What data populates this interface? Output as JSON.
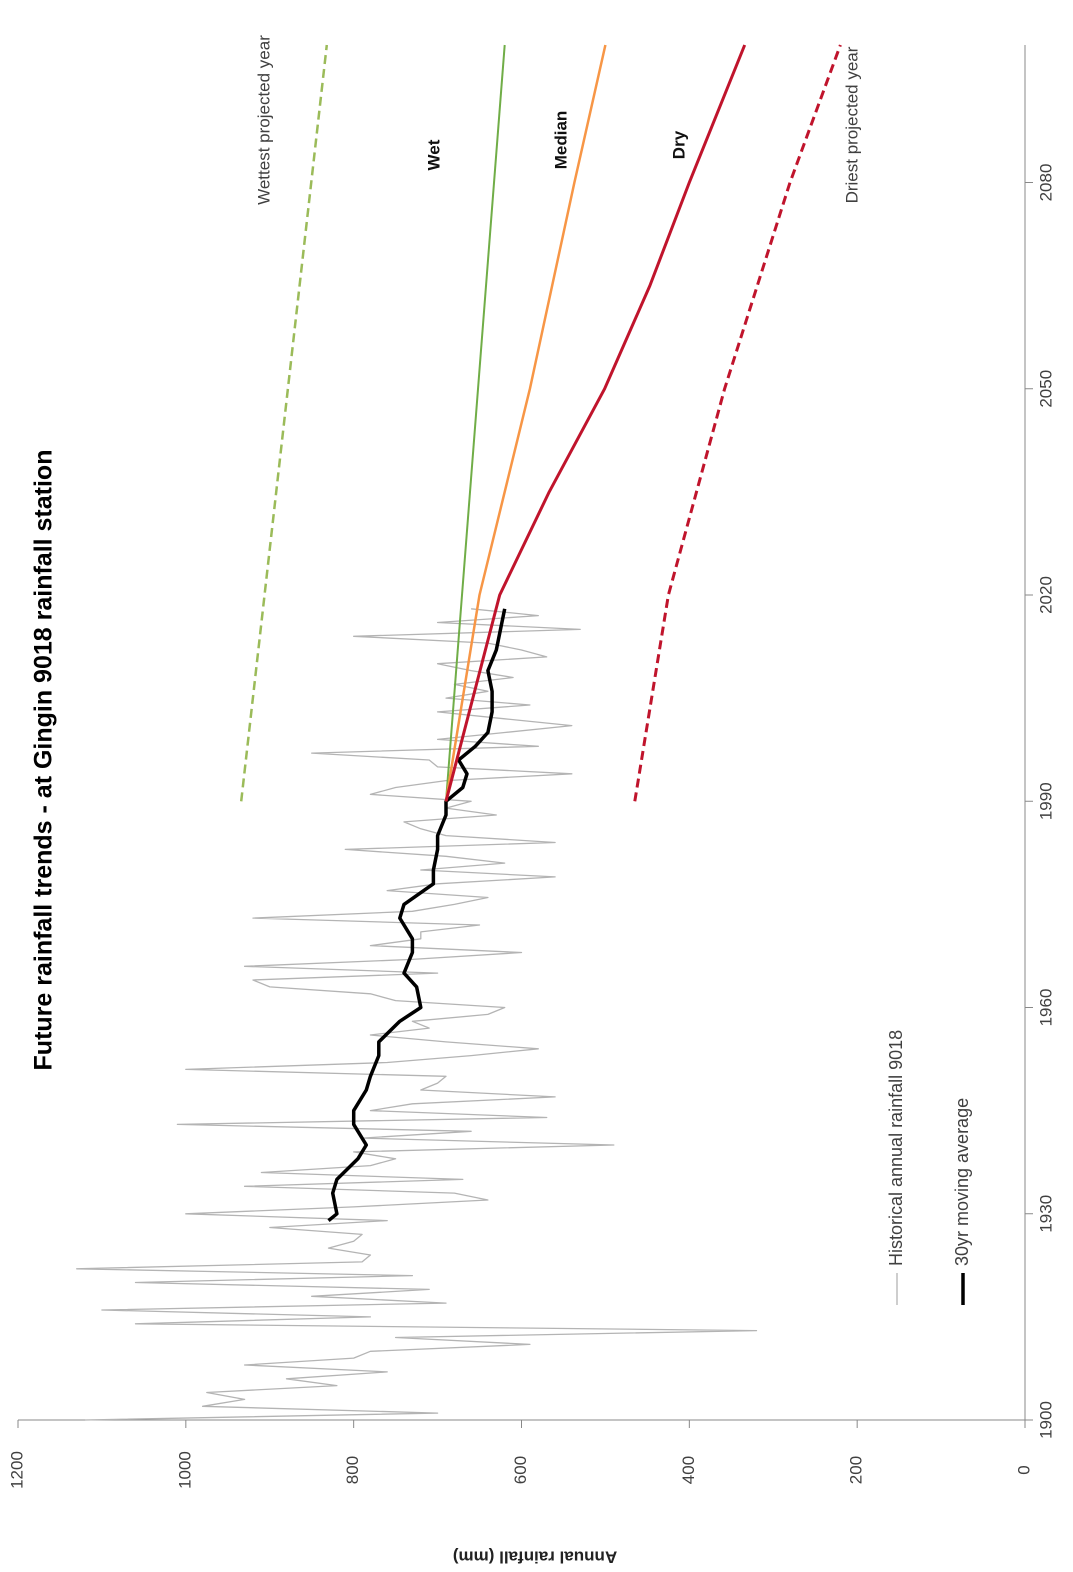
{
  "chart_data": {
    "type": "line",
    "title": "Future rainfall trends - at Gingin 9018 rainfall station",
    "y_label": "Annual rainfall (mm)",
    "xlim": [
      1900,
      2100
    ],
    "xticks": [
      1900,
      1930,
      1960,
      1990,
      2020,
      2050,
      2080
    ],
    "ylim": [
      0,
      1200
    ],
    "yticks": [
      0,
      200,
      400,
      600,
      800,
      1000,
      1200
    ],
    "series": [
      {
        "name": "Historical annual rainfall 9018",
        "color": "#b4b4b4",
        "width": 1.3,
        "legend": true,
        "x": [
          1900,
          1901,
          1902,
          1903,
          1904,
          1905,
          1906,
          1907,
          1908,
          1909,
          1910,
          1911,
          1912,
          1913,
          1914,
          1915,
          1916,
          1917,
          1918,
          1919,
          1920,
          1921,
          1922,
          1923,
          1924,
          1925,
          1926,
          1927,
          1928,
          1929,
          1930,
          1931,
          1932,
          1933,
          1934,
          1935,
          1936,
          1937,
          1938,
          1939,
          1940,
          1941,
          1942,
          1943,
          1944,
          1945,
          1946,
          1947,
          1948,
          1949,
          1950,
          1951,
          1952,
          1953,
          1954,
          1955,
          1956,
          1957,
          1958,
          1959,
          1960,
          1961,
          1962,
          1963,
          1964,
          1965,
          1966,
          1967,
          1968,
          1969,
          1970,
          1971,
          1972,
          1973,
          1974,
          1975,
          1976,
          1977,
          1978,
          1979,
          1980,
          1981,
          1982,
          1983,
          1984,
          1985,
          1986,
          1987,
          1988,
          1989,
          1990,
          1991,
          1992,
          1993,
          1994,
          1995,
          1996,
          1997,
          1998,
          1999,
          2000,
          2001,
          2002,
          2003,
          2004,
          2005,
          2006,
          2007,
          2008,
          2009,
          2010,
          2011,
          2012,
          2013,
          2014,
          2015,
          2016,
          2017,
          2018
        ],
        "values": [
          1120,
          700,
          980,
          930,
          975,
          820,
          880,
          760,
          930,
          800,
          780,
          590,
          750,
          320,
          1060,
          780,
          1100,
          690,
          850,
          710,
          1060,
          730,
          1130,
          790,
          780,
          830,
          800,
          790,
          900,
          760,
          1000,
          800,
          640,
          680,
          930,
          670,
          910,
          780,
          750,
          800,
          490,
          790,
          660,
          1010,
          570,
          780,
          730,
          560,
          720,
          700,
          690,
          1000,
          760,
          660,
          580,
          690,
          780,
          710,
          730,
          640,
          620,
          750,
          780,
          900,
          920,
          700,
          930,
          730,
          600,
          780,
          720,
          720,
          650,
          920,
          730,
          680,
          640,
          760,
          700,
          560,
          720,
          620,
          690,
          810,
          560,
          690,
          720,
          740,
          630,
          690,
          660,
          780,
          750,
          690,
          540,
          700,
          710,
          850,
          580,
          700,
          620,
          540,
          620,
          700,
          590,
          690,
          640,
          680,
          610,
          660,
          700,
          570,
          600,
          640,
          800,
          530,
          700,
          580,
          660
        ]
      },
      {
        "name": "30yr moving average",
        "color": "#000000",
        "width": 3.5,
        "legend": true,
        "x": [
          1929,
          1930,
          1933,
          1935,
          1938,
          1940,
          1943,
          1945,
          1948,
          1950,
          1953,
          1955,
          1958,
          1960,
          1963,
          1965,
          1968,
          1970,
          1973,
          1975,
          1978,
          1980,
          1983,
          1985,
          1988,
          1990,
          1992,
          1994,
          1996,
          1998,
          2000,
          2003,
          2006,
          2009,
          2012,
          2015,
          2018
        ],
        "values": [
          830,
          820,
          825,
          820,
          795,
          785,
          800,
          800,
          785,
          780,
          770,
          770,
          745,
          720,
          725,
          740,
          730,
          730,
          745,
          740,
          705,
          705,
          700,
          700,
          690,
          690,
          670,
          665,
          675,
          655,
          640,
          635,
          635,
          640,
          630,
          625,
          620
        ]
      },
      {
        "name": "Wettest projected year",
        "color": "#9bbb59",
        "width": 2.5,
        "dashed": true,
        "x": [
          1990,
          2100
        ],
        "values": [
          934,
          832
        ]
      },
      {
        "name": "Wet",
        "color": "#70ad47",
        "width": 2,
        "x": [
          1990,
          2100
        ],
        "values": [
          690,
          620
        ]
      },
      {
        "name": "Median",
        "color": "#f79646",
        "width": 2.5,
        "x": [
          1990,
          2020,
          2050,
          2080,
          2100
        ],
        "values": [
          690,
          650,
          590,
          537,
          500
        ]
      },
      {
        "name": "Dry",
        "color": "#c0142c",
        "width": 3,
        "x": [
          1990,
          2020,
          2035,
          2050,
          2065,
          2080,
          2100
        ],
        "values": [
          690,
          626,
          567,
          501,
          447,
          400,
          334
        ]
      },
      {
        "name": "Driest projected year",
        "color": "#c0142c",
        "width": 3,
        "dashed": true,
        "x": [
          1990,
          2020,
          2050,
          2080,
          2100
        ],
        "values": [
          465,
          425,
          358,
          280,
          220
        ]
      }
    ]
  }
}
